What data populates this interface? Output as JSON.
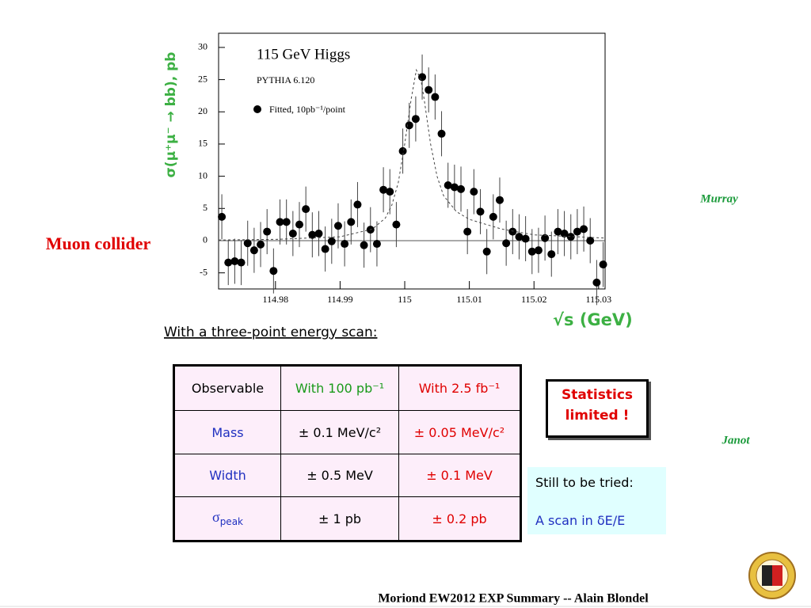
{
  "chart_data": {
    "type": "scatter",
    "annotations": [
      "115 GeV Higgs",
      "PYTHIA 6.120"
    ],
    "xlabel": "√s (GeV)",
    "ylabel": "σ(μ⁺μ⁻ → bb), pb",
    "xlim": [
      114.9712,
      115.031
    ],
    "ylim": [
      -7.5,
      32.2
    ],
    "xticks": [
      114.98,
      114.99,
      115,
      115.01,
      115.02,
      115.03
    ],
    "yticks": [
      -5,
      0,
      5,
      10,
      15,
      20,
      25,
      30
    ],
    "zero_line": true,
    "series": [
      {
        "name": "Fitted, 10pb⁻¹/point",
        "mode": "points",
        "color": "#000000",
        "error": 3.5,
        "x": [
          114.9717,
          114.9727,
          114.9737,
          114.9747,
          114.9757,
          114.9767,
          114.9777,
          114.9787,
          114.9797,
          114.9807,
          114.9817,
          114.9827,
          114.9837,
          114.9847,
          114.9857,
          114.9867,
          114.9877,
          114.9887,
          114.9897,
          114.9907,
          114.9917,
          114.9927,
          114.9937,
          114.9947,
          114.9957,
          114.9967,
          114.9977,
          114.9987,
          114.9997,
          115.0007,
          115.0017,
          115.0027,
          115.0037,
          115.0047,
          115.0057,
          115.0067,
          115.0077,
          115.0087,
          115.0097,
          115.0107,
          115.0117,
          115.0127,
          115.0137,
          115.0147,
          115.0157,
          115.0167,
          115.0177,
          115.0187,
          115.0197,
          115.0207,
          115.0217,
          115.0227,
          115.0237,
          115.0247,
          115.0257,
          115.0267,
          115.0277,
          115.0287,
          115.0297,
          115.0307
        ],
        "values": [
          3.7,
          -3.4,
          -3.2,
          -3.4,
          -0.4,
          -1.5,
          -0.6,
          1.4,
          -4.7,
          2.9,
          2.9,
          1.1,
          2.5,
          4.9,
          0.9,
          1.1,
          -1.3,
          -0.1,
          2.3,
          -0.5,
          2.9,
          5.6,
          -0.7,
          1.7,
          -0.5,
          7.9,
          7.6,
          2.5,
          13.9,
          17.9,
          18.9,
          25.4,
          23.4,
          22.3,
          16.6,
          8.6,
          8.3,
          8.0,
          1.4,
          7.6,
          4.5,
          -1.7,
          3.7,
          6.3,
          -0.4,
          1.4,
          0.6,
          0.3,
          -1.7,
          -1.5,
          0.4,
          -2.1,
          1.4,
          1.1,
          0.6,
          1.4,
          1.8,
          0,
          -6.5,
          -3.7
        ]
      },
      {
        "mode": "line",
        "dashed": true,
        "color": "#444444",
        "x": [
          114.9712,
          114.98,
          114.99,
          114.995,
          114.997,
          114.998,
          114.999,
          115.0,
          115.001,
          115.0018,
          115.0025,
          115.003,
          115.004,
          115.005,
          115.006,
          115.008,
          115.01,
          115.015,
          115.02,
          115.031
        ],
        "values": [
          0.1,
          0.2,
          0.6,
          1.8,
          3.5,
          5.5,
          9,
          15,
          22,
          26.5,
          25,
          22,
          15,
          10,
          7,
          4.5,
          3.3,
          1.8,
          0.9,
          0.4
        ]
      }
    ]
  },
  "caption": "With a three-point energy scan:",
  "side_label": "Muon collider",
  "credits": [
    "Murray",
    "Janot"
  ],
  "table": {
    "header": [
      "Observable",
      "With 100 pb⁻¹",
      "With 2.5 fb⁻¹"
    ],
    "rows": [
      {
        "label": "Mass",
        "cells": [
          "± 0.1 MeV/c²",
          "± 0.05 MeV/c²"
        ]
      },
      {
        "label": "Width",
        "cells": [
          "± 0.5 MeV",
          "± 0.1 MeV"
        ]
      },
      {
        "label": "σ",
        "label_sub": "peak",
        "cells": [
          "± 1 pb",
          "± 0.2 pb"
        ]
      }
    ]
  },
  "statistics_note": [
    "Statistics",
    "limited !"
  ],
  "todo_note": {
    "title": "Still to be tried:",
    "text": "A scan in δE/E"
  },
  "footer": "Moriond EW2012 EXP Summary -- Alain Blondel"
}
